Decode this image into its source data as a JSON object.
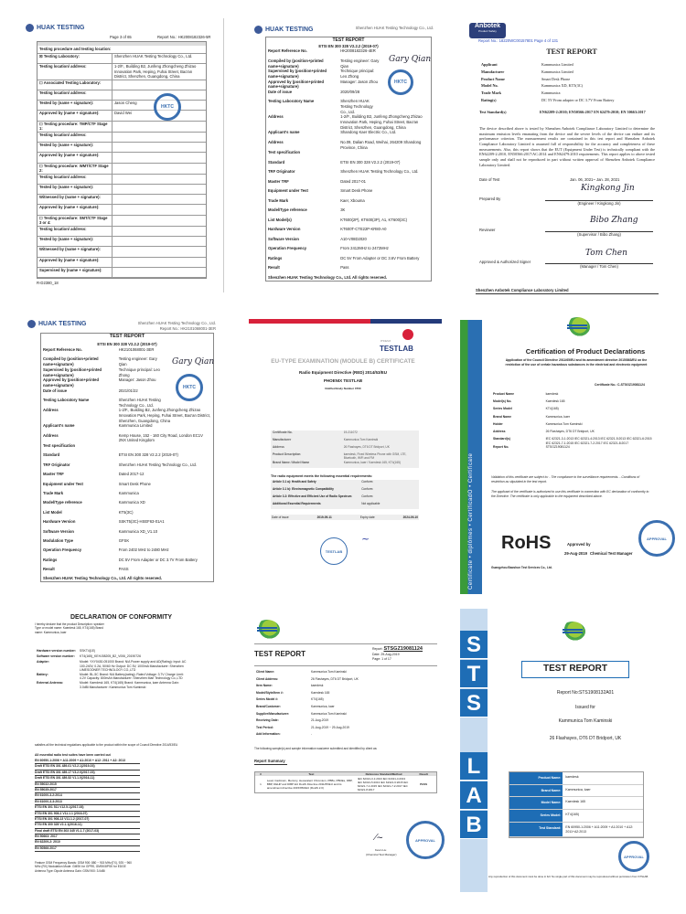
{
  "huak_lab_report": {
    "logo": "HUAK TESTING",
    "page": "Page 3 of 65",
    "report_no": "Report No.: HK2008182326-5R",
    "section_title": "Testing procedure and testing location:",
    "rows": [
      [
        "☒ Testing Laboratory:",
        "Shenzhen HUAK Testing Technology Co., Ltd."
      ],
      [
        "Testing location/ address:",
        "1-2/F., Building B2, Junfeng Zhongcheng Zhizao Innovation Park, Heping, Fuhai Street, Bao'an District, Shenzhen, Guangdong, China"
      ],
      [
        "☐ Associated Testing Laboratory:",
        ""
      ],
      [
        "Testing location/ address:",
        ""
      ],
      [
        "Tested by (name + signature):",
        "Jason Cheng"
      ],
      [
        "Approved by (name + signature):",
        "David Wei"
      ],
      [
        "☐ Testing procedure: TMP/CTF Stage 1:",
        ""
      ],
      [
        "Testing location/ address:",
        ""
      ],
      [
        "Tested by (name + signature):",
        ""
      ],
      [
        "Approved by (name + signature):",
        ""
      ],
      [
        "☐ Testing procedure: WMT/CTF Stage 2:",
        ""
      ],
      [
        "Testing location/ address:",
        ""
      ],
      [
        "Tested by (name + signature):",
        ""
      ],
      [
        "Witnessed by (name + signature):",
        ""
      ],
      [
        "Approved by (name + signature):",
        ""
      ],
      [
        "☐ Testing procedure: SMT/CTF Stage 3 or 4:",
        ""
      ],
      [
        "Testing location/ address:",
        ""
      ],
      [
        "Tested by (name + signature):",
        ""
      ],
      [
        "Witnessed by (name + signature):",
        ""
      ],
      [
        "Approved by (name + signature):",
        ""
      ],
      [
        "Supervised by (name + signature):",
        ""
      ]
    ],
    "stamp": "HKTC",
    "form_code": "R-D2380_18"
  },
  "huak_test_report_1": {
    "logo": "HUAK TESTING",
    "company": "Shenzhen HUAK Testing Technology Co., Ltd.",
    "title": "TEST REPORT",
    "standard": "ETSI EN 300 328 V2.2.2 (2019-07)",
    "rows": [
      [
        "Report Reference No.",
        "HK2008182326-4ER"
      ],
      [
        "Compiled by (position+printed name+signature)",
        "Testing engineer: Gary Qian"
      ],
      [
        "Supervised by (position+printed name+signature)",
        "Technique principal: Leo Zhong"
      ],
      [
        "Approved by (position+printed name+signature)",
        "Manager: Jason Zhou"
      ],
      [
        "Date of issue",
        "2020/09/28"
      ],
      [
        "Testing Laboratory Name",
        "Shenzhen HUAK Testing Technology Co., Ltd."
      ],
      [
        "Address",
        "1-2/F., Building B2, Junfeng Zhongcheng Zhizao Innovation Park, Heping, Fuhai Street, Bao'an District, Shenzhen, Guangdong, China"
      ],
      [
        "Applicant's name",
        "Shandong Kaer Electric Co., Ltd."
      ],
      [
        "Address",
        "No.09, Dalian Road, Weihai, 264209 Shandong Province, China"
      ],
      [
        "Test specification",
        ""
      ],
      [
        "Standard",
        "ETSI EN 300 328 V2.2.2 (2019-07)"
      ],
      [
        "TRF Originator",
        "Shenzhen HUAK Testing Technology Co., Ltd."
      ],
      [
        "Master TRF",
        "Dated 2017-01"
      ],
      [
        "Equipment under Test",
        "Smart Desk Phone"
      ],
      [
        "Trade Mark",
        "Kaer, Xbouma"
      ],
      [
        "Model/Type reference",
        "3K"
      ],
      [
        "List Model(s)",
        "KT600(2P), KT600(3P), A1, KT600(3C)"
      ],
      [
        "Hardware Version",
        "KT600T-CTE22P-KR80-A0"
      ],
      [
        "Software Version",
        "A10-V08D2020"
      ],
      [
        "Operation Frequency",
        "From 2412MHz to 2472MHz"
      ],
      [
        "Ratings",
        "DC 5V From Adapter or DC 3.6V From Battery"
      ],
      [
        "Result",
        "Pass"
      ]
    ],
    "rights": "Shenzhen HUAK Testing Technology Co., Ltd. All rights reserved.",
    "signature": "Gary Qian",
    "stamp": "HKTC"
  },
  "anbotek_report": {
    "logo": "Anbotek",
    "logo_sub": "Product Safety",
    "report_line": "Report No.: 18220WC00157801 Page 4 of 131",
    "title": "TEST REPORT",
    "rows": [
      [
        "Applicant",
        "Kammunica Limited"
      ],
      [
        "Manufacturer",
        "Kammunica Limited"
      ],
      [
        "Product Name",
        "Smart Desk Phone"
      ],
      [
        "Model No.",
        "Kammunica XD, KT5(3C)"
      ],
      [
        "Trade Mark",
        "Kammunica"
      ],
      [
        "Rating(s)",
        "DC 5V From adapter or DC 3.7V From Battery"
      ]
    ],
    "standards_label": "Test Standard(s)",
    "standards": "EN62209-2:2010; EN50566:2017 EN 62479:2010; EN 50663:2017",
    "paragraph": "The device described above is tested by Shenzhen Anbotek Compliance Laboratory Limited to determine the maximum emission levels emanating from the device and the severe levels of the device can endure and its performance criterion. The measurement results are contained in this test report and Shenzhen Anbotek Compliance Laboratory Limited is assumed full of responsibility for the accuracy and completeness of these measurements. Also, this report shows that the EUT (Equipment Under Test) is technically compliant with the EN62209-2:2010, EN50566:2017/AC:2014 and EN62479:2010 requirements. This report applies to above tested sample only and shall not be reproduced in part without written approval of Shenzhen Anbotek Compliance Laboratory Limited.",
    "date_label": "Date of Test",
    "date_value": "Jan. 06, 2021~ Jan. 28, 2021",
    "prepared_label": "Prepared By",
    "prepared_sig": "Kingkong Jin",
    "prepared_role": "(Engineer / Kingkong Jin)",
    "reviewer_label": "Reviewer",
    "reviewer_sig": "Bibo Zhang",
    "reviewer_role": "(Supervisor / Bibo Zhang)",
    "approved_label": "Approved & Authorized Signer",
    "approved_sig": "Tom Chen",
    "approved_role": "(Manager / Tom Chen)",
    "footer": "Shenzhen Anbotek Compliance Laboratory Limited"
  },
  "huak_test_report_2": {
    "logo": "HUAK TESTING",
    "company": "Shenzhen HUAK Testing Technology Co., Ltd.",
    "report_no": "Report No.: HK2101068001-3ER",
    "title": "TEST REPORT",
    "standard": "ETSI EN 300 328 V2.2.2 (2019-07)",
    "rows": [
      [
        "Report Reference No.",
        "HK2101068001-3ER"
      ],
      [
        "Compiled by (position+printed name+signature)",
        "Testing engineer: Gary Qian"
      ],
      [
        "Supervised by (position+printed name+signature)",
        "Technique principal: Leo Zhong"
      ],
      [
        "Approved by (position+printed name+signature)",
        "Manager: Jason Zhou"
      ],
      [
        "Date of issue",
        "2021/01/22"
      ],
      [
        "Testing Laboratory Name",
        "Shenzhen HUAK Testing Technology Co., Ltd."
      ],
      [
        "Address",
        "1-2/F., Building B2, Junfeng Zhongcheng Zhizao Innovation Park, Heping, Fuhai Street, Bao'an District, Shenzhen, Guangdong, China"
      ],
      [
        "Applicant's name",
        "Kammunica Limited"
      ],
      [
        "Address",
        "Kemp House, 152 - 160 City Road, London EC1V 2NX United Kingdom"
      ],
      [
        "Test specification",
        ""
      ],
      [
        "Standard",
        "ETSI EN 300 328 V2.2.2 (2019-07)"
      ],
      [
        "TRF Originator",
        "Shenzhen HUAK Testing Technology Co., Ltd."
      ],
      [
        "Master TRF",
        "Dated 2017-12"
      ],
      [
        "Equipment under Test",
        "Smart Desk Phone"
      ],
      [
        "Trade Mark",
        "Kammunica"
      ],
      [
        "Model/Type reference",
        "Kammunica XD"
      ],
      [
        "List Model",
        "KT5(3C)"
      ],
      [
        "Hardware Version",
        "SSKT5(3C)-HSEF63-01A1"
      ],
      [
        "Software Version",
        "Kammunica XD_V1.10"
      ],
      [
        "Modulation Type",
        "GFSK"
      ],
      [
        "Operation Frequency",
        "From 2402 MHz to 2480 MHz"
      ],
      [
        "Ratings",
        "DC 5V From Adapter or DC 3.7V From Battery"
      ],
      [
        "Result",
        "PASS"
      ]
    ],
    "rights": "Shenzhen HUAK Testing Technology Co., Ltd. All rights reserved.",
    "signature": "Gary Qian",
    "stamp": "HKTC"
  },
  "testlab_cert": {
    "brand_small": "PHOENIX",
    "brand": "TESTLAB",
    "title": "EU-TYPE EXAMINATION (MODULE B) CERTIFICATE",
    "directive": "Radio Equipment Directive (RED) 2014/53/EU",
    "issuer": "PHOENIX TESTLAB",
    "notified_body": "Notified Body Number 0700",
    "rows": [
      [
        "Certificate No.",
        "19-211072"
      ],
      [
        "Manufacturer",
        "Kammunica Tom Kaminski"
      ],
      [
        "Address",
        "26 Flashayes, DT6 DT Bridport, UK"
      ],
      [
        "Product Description",
        "kaerdesk, Fixed Wireless Phone with GSM, LTE, Bluetooth, WiFi and FM"
      ],
      [
        "Brand Name / Model Name",
        "Kammunica, kaer / Kaerdesk 165, KT4(165)"
      ]
    ],
    "req_title": "The radio equipment meets the following essential requirements:",
    "requirements": [
      [
        "Article 3.1 a): Health and Safety",
        "Conform"
      ],
      [
        "Article 3.1 b): Electromagnetic Compatibility",
        "Conform"
      ],
      [
        "Article 3.2: Effective and Efficient Use of Radio Spectrum",
        "Conform"
      ],
      [
        "Additional Essential Requirements",
        "Not applicable"
      ]
    ],
    "issue_label": "Date of issue",
    "issue_date": "2019-09-11",
    "expiry_label": "Expiry date",
    "expiry_date": "2024-09-10",
    "stamp": "TESTLAB"
  },
  "rohs_cert": {
    "side_band": "Certificate • diplômes • CertificadO • Certificate",
    "title": "Certification of Product Declarations",
    "subtitle": "Application of the Council Directive 2011/65/EU and its amendment directive 2015/863/EU on the restriction of the use of certain hazardous substances in the electrical and electronic equipment",
    "cert_no": "Certificate No.: C-STSGZ19081124",
    "rows": [
      [
        "Product Name",
        "kaerdesk"
      ],
      [
        "Model(s) No.",
        "Kaerdesk 165"
      ],
      [
        "Series Model",
        "KT4(165)"
      ],
      [
        "Brand Name",
        "Kammunica, kaer"
      ],
      [
        "Holder",
        "Kammunica Tom Kaminski"
      ],
      [
        "Address",
        "26 Flashayes, DT6 DT Bridport, UK"
      ],
      [
        "Standard(s)",
        "IEC 62321-3-1:2013 IEC 62321-4:2013 IEC 62321-5:2013 IEC 62321-6:2015 IEC 62321-7-1:2015 IEC 62321-7-2:2017 IEC 62321-8:2017"
      ],
      [
        "Report No.",
        "STSGZ19081124"
      ]
    ],
    "validation": "Validation of this certificate are subject to: - The compliance to the surveillance requirements. - Conditions of restriction as stipulated in the test report.",
    "note": "The applicant of the certificate is authorized to use this certificate in connection with EC declaration of conformity to the Directive. The certificate is only applicable to the equipment described above.",
    "rohs": "RoHS",
    "approved_by": "Approved by",
    "date": "29-Aug-2019",
    "role": "Chemical Test Manager",
    "stamp": "APPROVAL",
    "company": "Guangzhou Baoshun Test Services Co., Ltd."
  },
  "declaration": {
    "title": "DECLARATION OF CONFORMITY",
    "intro": "I hereby declare that the product Description: speaker Type or model name: Kaerdesk 165, KT4(165) Brand name: Kammunica, kaer",
    "rows": [
      [
        "Hardware version number:",
        "SSKT4(1E)"
      ],
      [
        "Software version number:",
        "KT4(165)_KEHJ08205_B2_V006_20190726"
      ],
      [
        "Adapter:",
        "Model: YXY0430-051000 Brand: N/A Power supply and AD(Rating): Input: AC 100-240V, 0.2A, 50/60 Hz Output: DC 5V, 1000mA Manufacturer: Shenzhen LIMESOONER TECHNOLOGY CO.,LTD"
      ],
      [
        "Battery:",
        "Model: BL-5C Brand: N/A Battery(rating): Rated Voltage: 3.7V Charge Limit: 4.2V Capacity: 800mAh Manufacturer: Shenzhen Mari Technology Co.,LTD"
      ],
      [
        "External Antenna:",
        "Model: Kaerdesk 165, KT4(165) Brand: Kammunica, kaer Antenna Gain: 3.0dBi Manufacturer: Kammunica Tom Kaminski"
      ]
    ],
    "satisfies": "satisfies all the technical regulations applicable to the product within the scope of Council Directive 2014/53/EU",
    "suites_title": "All essential radio test suites have been carried out",
    "standards": [
      "EN 60950-1:2006 + A11:2009 + A1:2010 + A12: 2011 + A2: 2013",
      "Draft ETSI EN 301 489-01 V2.2.1(2019-03)",
      "Draft ETSI EN 301 489-17 V3.2.0(2017-03)",
      "Draft ETSI EN 301 489-52 V1.1.0(2016-11)",
      "EN 55032:2015",
      "EN 55035:2017",
      "EN 61000-3-2:2014",
      "EN 61000-3-3:2013",
      "ETSI EN 301 511 V12.5.1(2017-03)",
      "ETSI EN 301 908-1 V11.1.1 (2016-07)",
      "ETSI EN 301 908-13 V11.1.2 (2017-07)",
      "ETSI EN 300 328 V2.1.1(2016-11)",
      "Final draft ETSI EN 303 345 V1.1.7 (2017-03)",
      "EN 50663: 2017",
      "EN 62209-2: 2010",
      "EN 50566:2017"
    ],
    "feature": "Feature GSM Frequency Bands: GSM 900: 880 ~ 915 MHz(TX), 925 ~ 960 MHz (RX) Modulation Mode: GMSK for GPRS, GMSK/8PSK for EDGE Antenna Type: Dipole Antenna Gain: GSM 900: 3.0dBi"
  },
  "sts_test_report": {
    "title": "TEST REPORT",
    "report_label": "Report:",
    "report_no": "STSGZ19081124",
    "date": "Date: 29-Aug-2019",
    "page": "Page: 1 of 17",
    "rows": [
      [
        "Client Name:",
        "Kammunica Tom Kaminski"
      ],
      [
        "Client Address:",
        "26 Flashayes, DT6 DT Bridport, UK"
      ],
      [
        "Item Name:",
        "kaerdesk"
      ],
      [
        "Model/Style/Item #:",
        "Kaerdesk 165"
      ],
      [
        "Series Model #:",
        "KT4(165)"
      ],
      [
        "Brand/Customer:",
        "Kammunica, kaer"
      ],
      [
        "Supplier/Manufacturer:",
        "Kammunica Tom Kaminski"
      ],
      [
        "Receiving Date:",
        "21-Aug-2019"
      ],
      [
        "Test Period:",
        "21-Aug-2019 ~ 29-Aug-2019"
      ],
      [
        "Add Information:",
        "-"
      ]
    ],
    "submitted_note": "The following sample(s) and sample information was/were submitted and identified by client as:",
    "summary_title": "Report Summary",
    "summary_headers": [
      "#",
      "Test",
      "Reference Standard/Method",
      "Result"
    ],
    "summary_row": [
      "1",
      "Lead, Cadmium, Mercury, Hexavalent Chromium, PBBs, PBDEs, DBP, BBP, DEHP and DIBP EU RoHS Directive 2011/65/EU and its amendment directive 2015/863/EU (RoHS 2.0)",
      "IEC 62321-3-1:2013 IEC 62321-4:2013 IEC 62321-5:2013 IEC 62321-6:2015 IEC 62321-7-1:2015 IEC 62321-7-2:2017 IEC 62321-8:2017",
      "PASS"
    ],
    "signer": "Kevin Liu",
    "signer_role": "(Chemical Test Manager)",
    "stamp": "APPROVAL"
  },
  "stslab_report": {
    "side_letters": [
      "S",
      "T",
      "S",
      "L",
      "A",
      "B"
    ],
    "title": "TEST REPORT",
    "report_no": "Report No:STS1908132A01",
    "issued_for": "Issued for",
    "client": "Kammunica Tom Kaminski",
    "address": "26 Flashayes, DT6 DT Bridport, UK",
    "rows": [
      [
        "Product Name:",
        "kaerdesk"
      ],
      [
        "Brand Name:",
        "Kammunica, kaer"
      ],
      [
        "Model Name:",
        "Kaerdesk 165"
      ],
      [
        "Series Model:",
        "KT4(165)"
      ],
      [
        "Test Standard:",
        "EN 60950-1:2006 + A11:2009 + A1:2010 + A12: 2011+A2:2013"
      ]
    ],
    "stamp": "APPROVAL",
    "footer": "Any reproduction of this document must be done in full. No single part of this document may be reproduced without permission from STSLAB.",
    "colors": {
      "blue": "#1e6db5",
      "light_blue": "#c7dbef"
    }
  }
}
